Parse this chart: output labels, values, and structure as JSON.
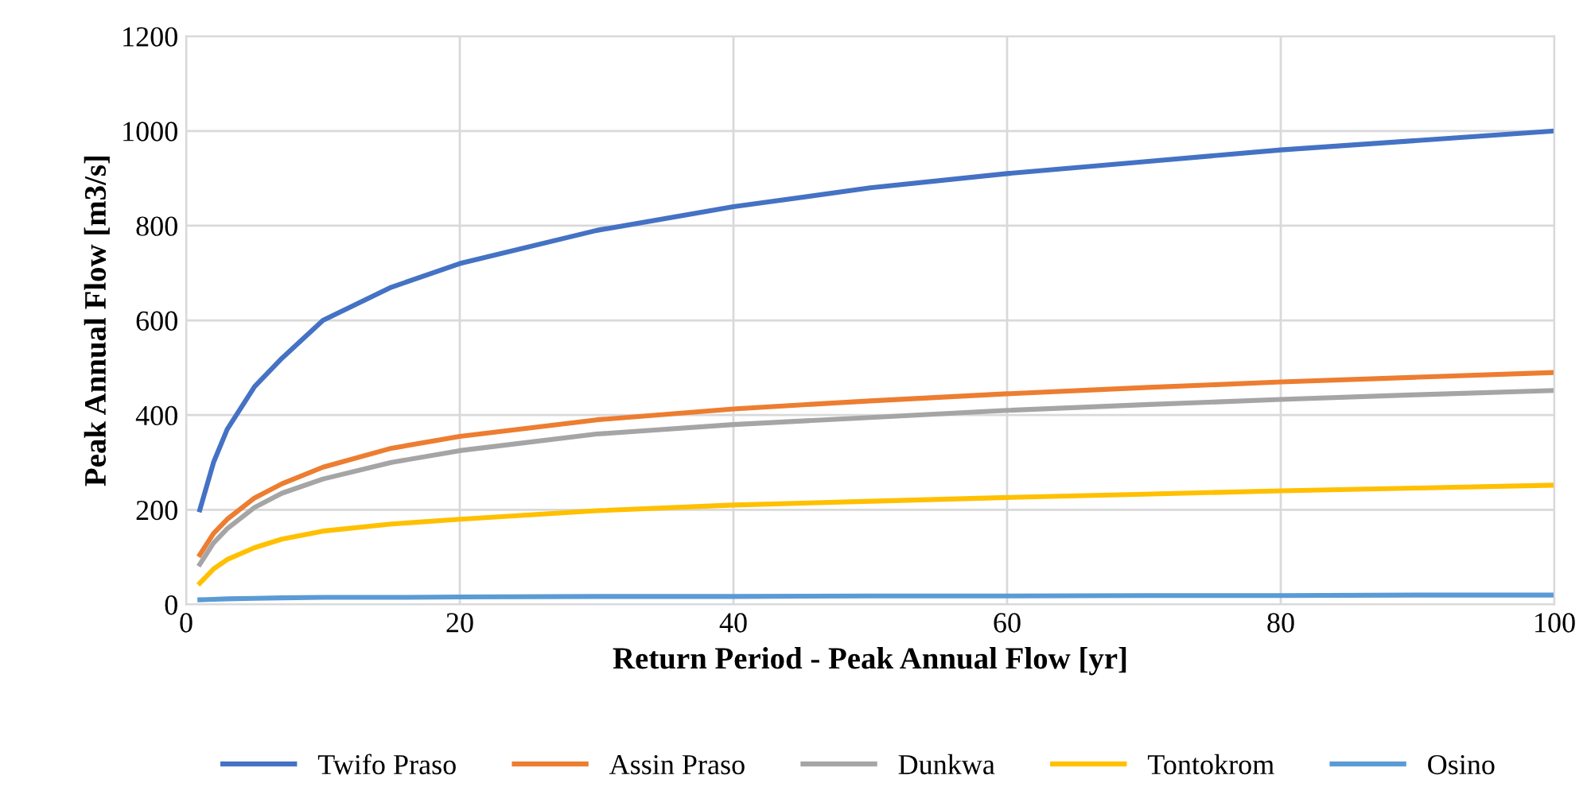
{
  "chart_data": {
    "type": "line",
    "xlabel": "Return Period - Peak Annual Flow [yr]",
    "ylabel": "Peak Annual Flow [m3/s]",
    "x": [
      1,
      2,
      3,
      5,
      7,
      10,
      15,
      20,
      30,
      40,
      50,
      60,
      70,
      80,
      90,
      100
    ],
    "series": [
      {
        "name": "Twifo Praso",
        "color": "#4472c4",
        "values": [
          200,
          300,
          370,
          460,
          520,
          600,
          670,
          720,
          790,
          840,
          880,
          910,
          935,
          960,
          980,
          1000
        ]
      },
      {
        "name": "Assin Praso",
        "color": "#ed7d31",
        "values": [
          105,
          150,
          180,
          225,
          255,
          290,
          330,
          355,
          390,
          413,
          430,
          445,
          458,
          470,
          480,
          490
        ]
      },
      {
        "name": "Dunkwa",
        "color": "#a5a5a5",
        "values": [
          85,
          130,
          160,
          205,
          235,
          265,
          300,
          325,
          360,
          380,
          395,
          410,
          422,
          433,
          443,
          452
        ]
      },
      {
        "name": "Tontokrom",
        "color": "#ffc000",
        "values": [
          45,
          75,
          95,
          120,
          138,
          155,
          170,
          180,
          198,
          210,
          218,
          226,
          233,
          240,
          246,
          252
        ]
      },
      {
        "name": "Osino",
        "color": "#5b9bd5",
        "values": [
          10,
          11,
          12,
          13,
          14,
          15,
          15,
          16,
          17,
          17,
          18,
          18,
          19,
          19,
          20,
          20
        ]
      }
    ],
    "xlim": [
      0,
      100
    ],
    "xticks": [
      0,
      20,
      40,
      60,
      80,
      100
    ],
    "ylim": [
      0,
      1200
    ],
    "yticks": [
      0,
      200,
      400,
      600,
      800,
      1000,
      1200
    ],
    "grid": true,
    "legend": "bottom",
    "marker": "none",
    "line_style": "solid"
  }
}
